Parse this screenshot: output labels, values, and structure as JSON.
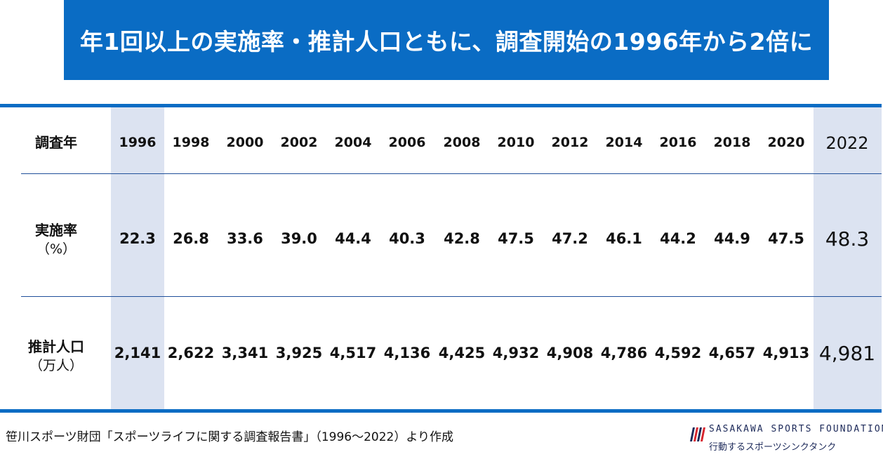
{
  "title": "年1回以上の実施率・推計人口ともに、調査開始の1996年から2倍に",
  "row_labels": {
    "year": "調査年",
    "rate": "実施率",
    "rate_unit": "（%）",
    "population": "推計人口",
    "population_unit": "（万人）"
  },
  "chart_data": {
    "type": "table",
    "columns": [
      "1996",
      "1998",
      "2000",
      "2002",
      "2004",
      "2006",
      "2008",
      "2010",
      "2012",
      "2014",
      "2016",
      "2018",
      "2020",
      "2022"
    ],
    "rate": [
      "22.3",
      "26.8",
      "33.6",
      "39.0",
      "44.4",
      "40.3",
      "42.8",
      "47.5",
      "47.2",
      "46.1",
      "44.2",
      "44.9",
      "47.5",
      "48.3"
    ],
    "population": [
      "2,141",
      "2,622",
      "3,341",
      "3,925",
      "4,517",
      "4,136",
      "4,425",
      "4,932",
      "4,908",
      "4,786",
      "4,592",
      "4,657",
      "4,913",
      "4,981"
    ],
    "highlighted_columns": [
      "1996",
      "2022"
    ]
  },
  "source": "笹川スポーツ財団「スポーツライフに関する調査報告書」（1996〜2022）より作成",
  "logo": {
    "name": "SASAKAWA SPORTS FOUNDATION",
    "tagline": "行動するスポーツシンクタンク"
  },
  "colors": {
    "accent": "#0a6cc4",
    "highlight_band": "#dce3f1",
    "logo_red": "#d7262e",
    "logo_navy": "#1d2a5a"
  }
}
